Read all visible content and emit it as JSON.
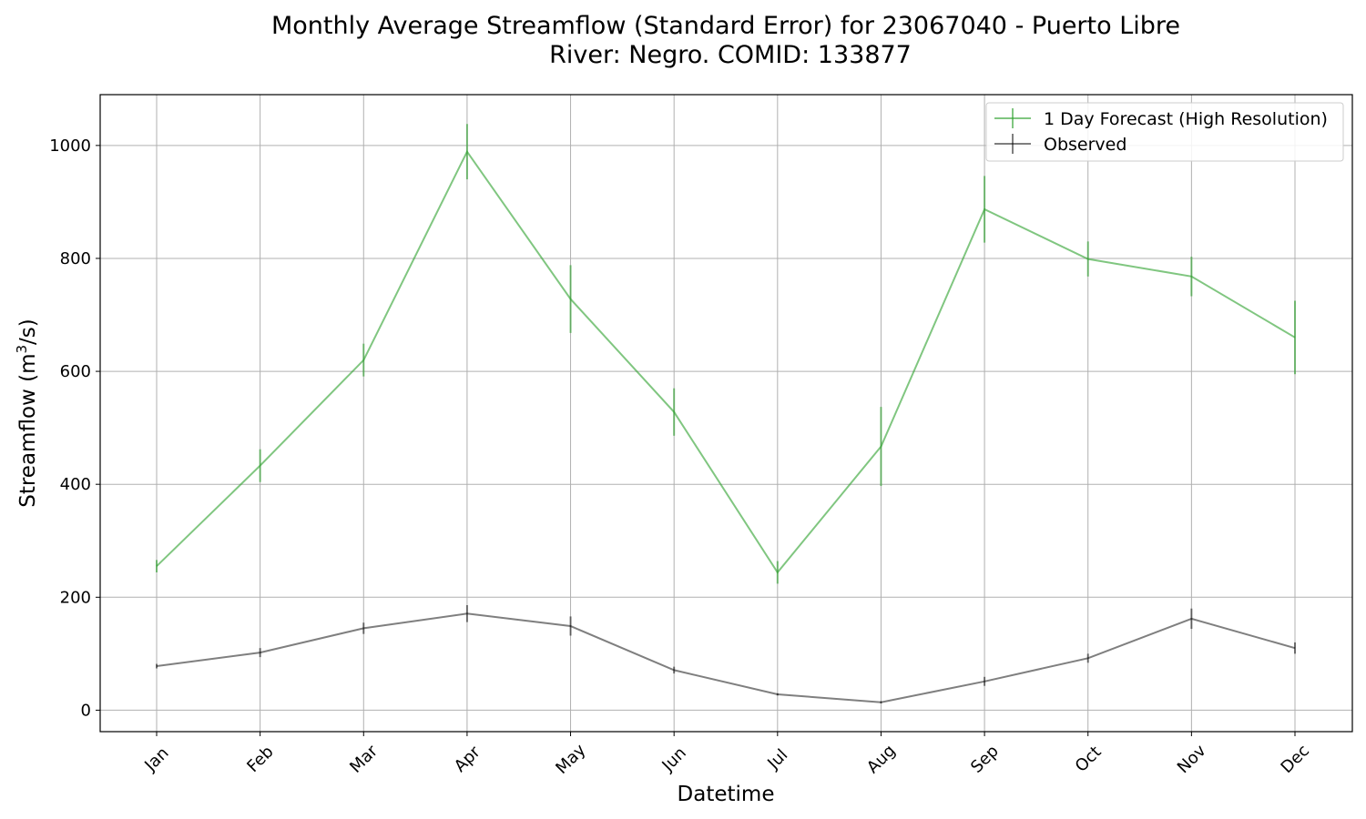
{
  "chart_data": {
    "type": "line",
    "title_line1": "Monthly Average Streamflow (Standard Error) for 23067040 - Puerto Libre",
    "title_line2": "River: Negro. COMID: 133877",
    "xlabel": "Datetime",
    "ylabel_main": "Streamflow (m",
    "ylabel_sup": "3",
    "ylabel_end": "/s)",
    "categories": [
      "Jan",
      "Feb",
      "Mar",
      "Apr",
      "May",
      "Jun",
      "Jul",
      "Aug",
      "Sep",
      "Oct",
      "Nov",
      "Dec"
    ],
    "ylim": [
      -38,
      1090
    ],
    "yticks": [
      0,
      200,
      400,
      600,
      800,
      1000
    ],
    "grid": true,
    "legend_position": "top-right",
    "series": [
      {
        "name": "1 Day Forecast (High Resolution)",
        "color": "#2ca02c",
        "values": [
          255,
          433,
          620,
          989,
          728,
          528,
          244,
          467,
          887,
          799,
          768,
          660
        ],
        "errors": [
          11,
          29,
          29,
          49,
          60,
          42,
          20,
          70,
          59,
          31,
          35,
          65
        ]
      },
      {
        "name": "Observed",
        "color": "#000000",
        "values": [
          78,
          102,
          145,
          171,
          149,
          71,
          28,
          14,
          51,
          92,
          162,
          110
        ],
        "errors": [
          4,
          8,
          10,
          15,
          17,
          6,
          2,
          2,
          8,
          8,
          18,
          10
        ]
      }
    ]
  }
}
